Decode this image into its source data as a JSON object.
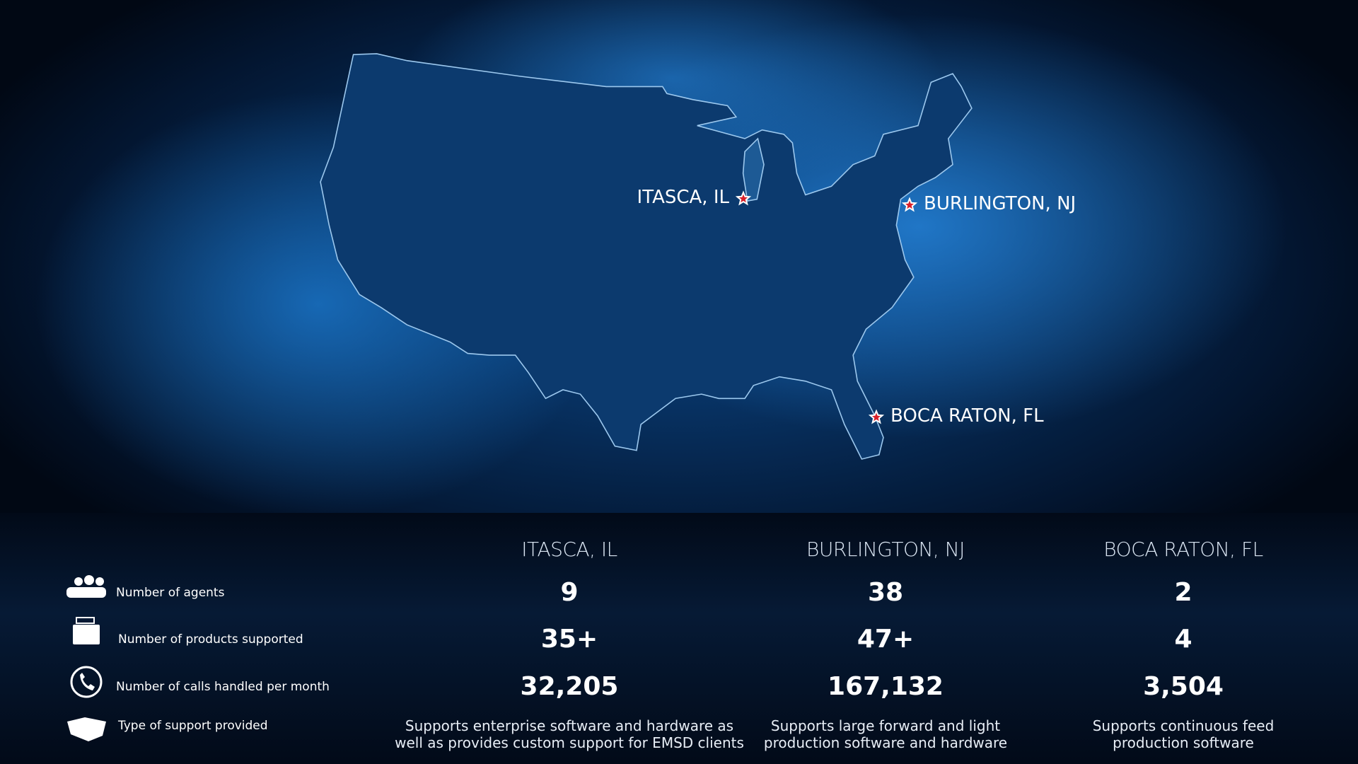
{
  "map": {
    "locations": [
      {
        "label": "ITASCA, IL"
      },
      {
        "label": "BURLINGTON, NJ"
      },
      {
        "label": "BOCA RATON, FL"
      }
    ]
  },
  "table": {
    "columns": [
      "ITASCA, IL",
      "BURLINGTON, NJ",
      "BOCA RATON, FL"
    ],
    "rows": [
      {
        "label": "Number of agents",
        "cells": [
          "9",
          "38",
          "2"
        ]
      },
      {
        "label": "Number of products supported",
        "cells": [
          "35+",
          "47+",
          "4"
        ]
      },
      {
        "label": "Number of calls handled per month",
        "cells": [
          "32,205",
          "167,132",
          "3,504"
        ]
      },
      {
        "label": "Type of support provided",
        "cells": [
          [
            "Supports enterprise software and hardware as",
            "well as provides custom support for EMSD clients"
          ],
          [
            "Supports large forward and light",
            "production software and hardware"
          ],
          [
            "Supports continuous feed",
            "production software"
          ]
        ]
      }
    ]
  }
}
